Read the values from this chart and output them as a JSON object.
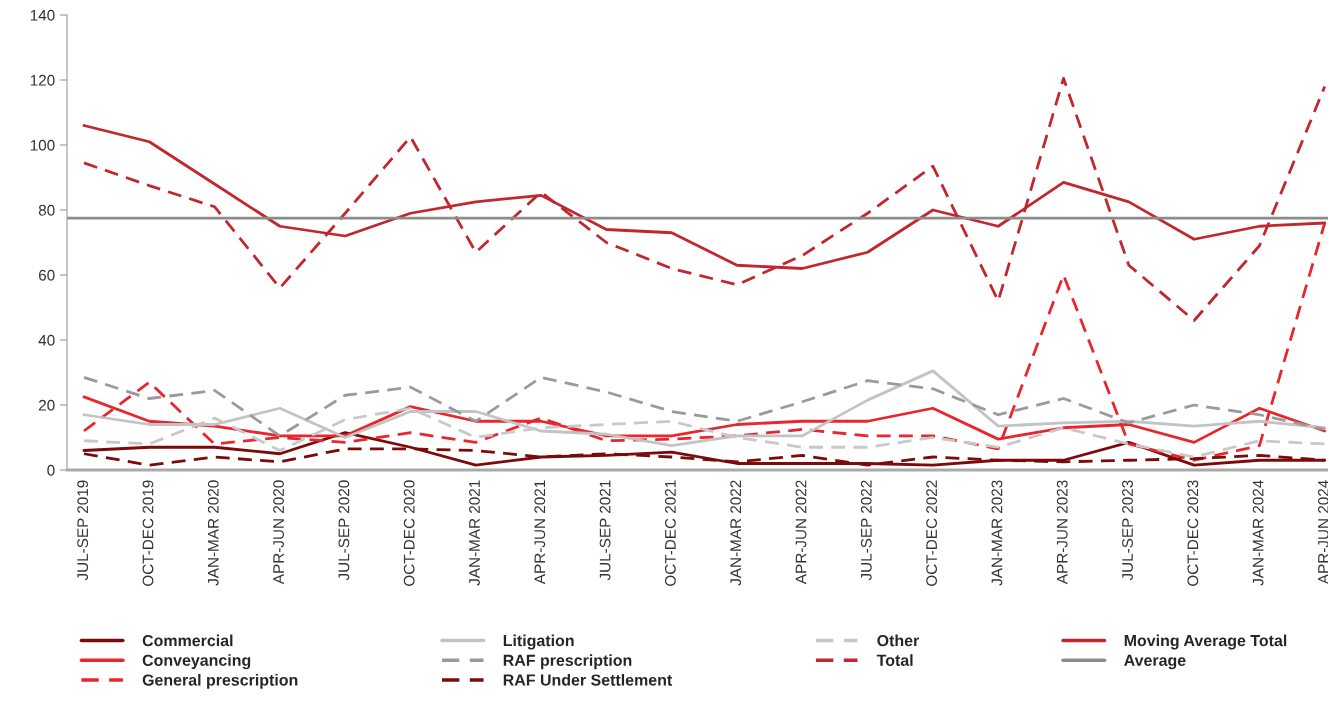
{
  "chart_data": {
    "type": "line",
    "categories": [
      "JUL-SEP 2019",
      "OCT-DEC 2019",
      "JAN-MAR 2020",
      "APR-JUN 2020",
      "JUL-SEP 2020",
      "OCT-DEC 2020",
      "JAN-MAR 2021",
      "APR-JUN 2021",
      "JUL-SEP 2021",
      "OCT-DEC 2021",
      "JAN-MAR 2022",
      "APR-JUN 2022",
      "JUL-SEP 2022",
      "OCT-DEC 2022",
      "JAN-MAR 2023",
      "APR-JUN 2023",
      "JUL-SEP 2023",
      "OCT-DEC 2023",
      "JAN-MAR 2024",
      "APR-JUN 2024"
    ],
    "ylim": [
      0,
      140
    ],
    "yticks": [
      0,
      20,
      40,
      60,
      80,
      100,
      120,
      140
    ],
    "grid": false,
    "legend": "bottom",
    "marker": "none",
    "series": [
      {
        "name": "Commercial",
        "color": "#7b0a0a",
        "line_style": "solid",
        "values": [
          6,
          7,
          7,
          5,
          11.5,
          7,
          1.5,
          4,
          4.5,
          5.5,
          2,
          2,
          2,
          1.5,
          3,
          3,
          8.5,
          1.5,
          3,
          3
        ]
      },
      {
        "name": "Conveyancing",
        "color": "#e8262d",
        "line_style": "solid",
        "values": [
          22.5,
          15,
          13.5,
          10.5,
          10.5,
          19.5,
          15,
          15,
          10.5,
          10.5,
          14,
          15,
          15,
          19,
          9.5,
          13,
          14,
          8.5,
          19,
          12
        ]
      },
      {
        "name": "General prescription",
        "color": "#e8262d",
        "line_style": "dashed",
        "values": [
          12,
          27,
          8,
          10,
          8.5,
          11.5,
          8.5,
          16,
          9,
          9.5,
          10.5,
          12.5,
          10.5,
          10.5,
          6.5,
          60,
          8,
          3,
          7.5,
          76
        ]
      },
      {
        "name": "Litigation",
        "color": "#c3c3c3",
        "line_style": "solid",
        "values": [
          17,
          14,
          14,
          19,
          10,
          18,
          18,
          12,
          11,
          7.5,
          10.5,
          10.5,
          21.5,
          30.5,
          13.5,
          14.5,
          15,
          13.5,
          15,
          13
        ]
      },
      {
        "name": "RAF prescription",
        "color": "#9a9a9a",
        "line_style": "dashed",
        "values": [
          28.5,
          22,
          24.5,
          10.5,
          23,
          25.5,
          15,
          28.5,
          24,
          18,
          15,
          21,
          27.5,
          25,
          17,
          22,
          14.5,
          20,
          17,
          12.5
        ]
      },
      {
        "name": "RAF Under Settlement",
        "color": "#7b0a0a",
        "line_style": "dashed",
        "values": [
          5,
          1.5,
          4,
          2.5,
          6.5,
          6.5,
          6,
          4,
          5,
          4,
          2.5,
          4.5,
          1.5,
          4,
          3,
          2.5,
          3,
          3.5,
          4.5,
          3
        ]
      },
      {
        "name": "Other",
        "color": "#c8c8c8",
        "line_style": "dashed",
        "values": [
          9,
          8,
          16,
          6,
          15.5,
          19,
          10,
          13,
          14,
          15,
          10,
          7,
          7,
          10,
          7,
          13,
          8,
          4,
          9,
          8
        ]
      },
      {
        "name": "Total",
        "color": "#c1272d",
        "line_style": "dashed",
        "values": [
          94.5,
          87.5,
          81,
          56,
          79,
          102.5,
          67,
          85.5,
          70,
          62,
          57,
          66,
          79,
          93.5,
          52,
          120.5,
          63,
          46,
          69,
          118
        ]
      },
      {
        "name": "Moving Average Total",
        "color": "#c1272d",
        "line_style": "solid",
        "values": [
          106,
          101,
          88,
          75,
          72,
          79,
          82.5,
          84.5,
          74,
          73,
          63,
          62,
          67,
          80,
          75,
          88.5,
          82.5,
          71,
          75,
          76
        ]
      }
    ],
    "ref_lines": [
      {
        "axis": "y",
        "value": 77.5,
        "label": "Average",
        "color": "#8c8c8c",
        "line_style": "solid"
      }
    ]
  }
}
